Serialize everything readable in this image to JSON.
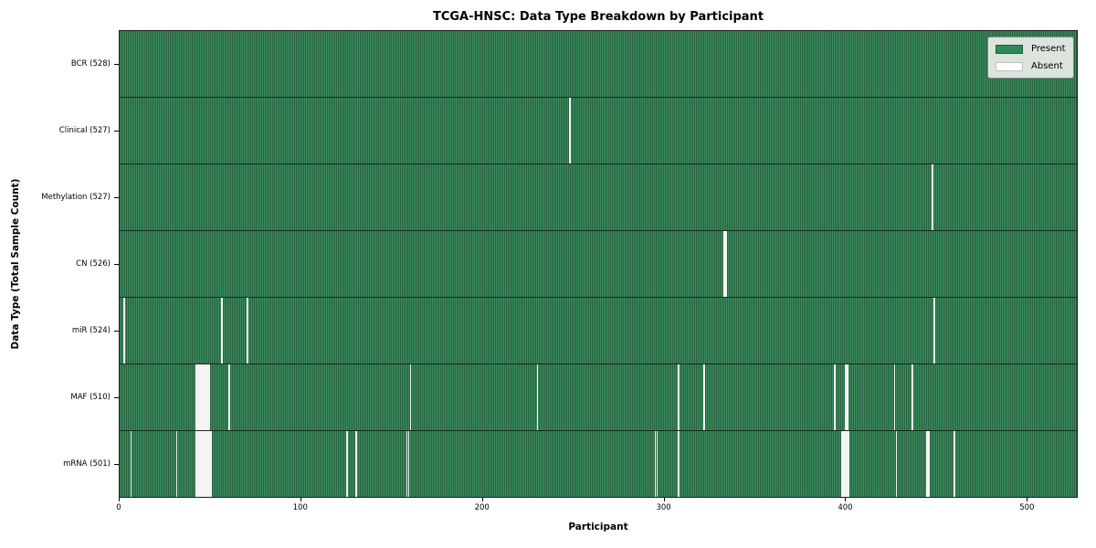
{
  "title": "TCGA-HNSC: Data Type Breakdown by Participant",
  "x_axis": {
    "label": "Participant"
  },
  "y_axis": {
    "label": "Data Type (Total Sample Count)"
  },
  "legend": {
    "items": [
      {
        "label": "Present",
        "color": "#2e8b57",
        "border": "#245c3d"
      },
      {
        "label": "Absent",
        "color": "#ffffff",
        "border": "#c0c0c0"
      }
    ]
  },
  "colors": {
    "present_stripe_light": "#3d8d5f",
    "present_stripe_dark": "#276340",
    "absent_gap": "#f4f4f4",
    "legend_background": "#e9ede9"
  },
  "chart_data": {
    "type": "heatmap",
    "title": "TCGA-HNSC: Data Type Breakdown by Participant",
    "xlabel": "Participant",
    "ylabel": "Data Type (Total Sample Count)",
    "n_participants": 528,
    "x_ticks": [
      0,
      100,
      200,
      300,
      400,
      500
    ],
    "legend_position": "upper right",
    "value_encoding": {
      "present": "green",
      "absent": "white"
    },
    "rows": [
      {
        "label": "BCR (528)",
        "data_type": "BCR",
        "present_count": 528,
        "absent_count": 0,
        "absent_participants": []
      },
      {
        "label": "Clinical (527)",
        "data_type": "Clinical",
        "present_count": 527,
        "absent_count": 1,
        "absent_participants": [
          248
        ]
      },
      {
        "label": "Methylation (527)",
        "data_type": "Methylation",
        "present_count": 527,
        "absent_count": 1,
        "absent_participants": [
          448
        ]
      },
      {
        "label": "CN (526)",
        "data_type": "CN",
        "present_count": 526,
        "absent_count": 2,
        "absent_participants": [
          333,
          334
        ]
      },
      {
        "label": "miR (524)",
        "data_type": "miR",
        "present_count": 524,
        "absent_count": 4,
        "absent_participants": [
          2,
          56,
          70,
          449
        ]
      },
      {
        "label": "MAF (510)",
        "data_type": "MAF",
        "present_count": 510,
        "absent_count": 18,
        "absent_participants": [
          42,
          43,
          44,
          45,
          46,
          47,
          48,
          49,
          60,
          160,
          230,
          308,
          322,
          394,
          400,
          401,
          427,
          437
        ]
      },
      {
        "label": "mRNA (501)",
        "data_type": "mRNA",
        "present_count": 501,
        "absent_count": 27,
        "absent_participants": [
          6,
          31,
          42,
          43,
          44,
          45,
          46,
          47,
          48,
          49,
          50,
          125,
          130,
          158,
          159,
          295,
          296,
          308,
          398,
          399,
          400,
          401,
          402,
          428,
          445,
          446,
          460
        ]
      }
    ]
  }
}
